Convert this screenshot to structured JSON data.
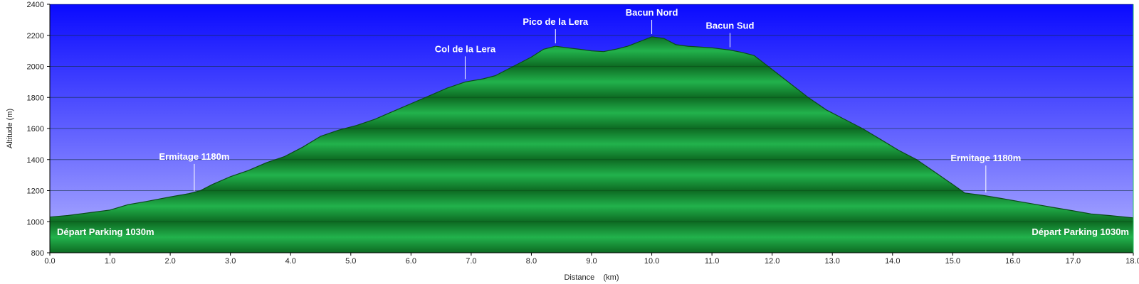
{
  "chart_data": {
    "type": "area",
    "title": "",
    "xlabel": "Distance    (km)",
    "ylabel": "Altitude (m)",
    "xlim": [
      0,
      18.0
    ],
    "ylim": [
      800,
      2400
    ],
    "x_ticks": [
      "0.0",
      "1.0",
      "2.0",
      "3.0",
      "4.0",
      "5.0",
      "6.0",
      "7.0",
      "8.0",
      "9.0",
      "10.0",
      "11.0",
      "12.0",
      "13.0",
      "14.0",
      "15.0",
      "16.0",
      "17.0",
      "18.0"
    ],
    "y_ticks": [
      "800",
      "1000",
      "1200",
      "1400",
      "1600",
      "1800",
      "2000",
      "2200",
      "2400"
    ],
    "grid": true,
    "colors": {
      "sky_top": "#0a0aff",
      "sky_bottom": "#b4b4ff",
      "area_light": "#22b24c",
      "area_dark": "#0d6a22",
      "outline": "#0b4a18"
    },
    "series": [
      {
        "x": [
          0,
          0.3,
          0.6,
          1.0,
          1.3,
          1.6,
          2.0,
          2.3,
          2.5,
          2.7,
          3.0,
          3.3,
          3.6,
          3.9,
          4.2,
          4.5,
          4.8,
          5.1,
          5.4,
          5.7,
          6.0,
          6.3,
          6.6,
          6.9,
          7.2,
          7.4,
          7.6,
          7.8,
          8.0,
          8.2,
          8.4,
          8.6,
          8.8,
          9.0,
          9.2,
          9.4,
          9.6,
          9.8,
          10.0,
          10.2,
          10.4,
          10.6,
          10.8,
          11.0,
          11.3,
          11.5,
          11.7,
          12.0,
          12.3,
          12.6,
          12.9,
          13.2,
          13.5,
          13.8,
          14.1,
          14.4,
          14.7,
          15.0,
          15.2,
          15.5,
          15.8,
          16.1,
          16.4,
          16.7,
          17.0,
          17.3,
          17.6,
          18.0
        ],
        "y": [
          1030,
          1040,
          1055,
          1075,
          1110,
          1130,
          1160,
          1180,
          1200,
          1240,
          1290,
          1330,
          1380,
          1420,
          1480,
          1550,
          1590,
          1620,
          1660,
          1710,
          1760,
          1810,
          1860,
          1900,
          1920,
          1940,
          1980,
          2020,
          2060,
          2110,
          2130,
          2120,
          2110,
          2100,
          2095,
          2110,
          2130,
          2160,
          2190,
          2180,
          2140,
          2130,
          2125,
          2120,
          2105,
          2090,
          2070,
          1980,
          1890,
          1800,
          1720,
          1660,
          1600,
          1530,
          1460,
          1400,
          1320,
          1240,
          1185,
          1170,
          1150,
          1130,
          1110,
          1090,
          1070,
          1050,
          1040,
          1025
        ]
      }
    ],
    "annotations": [
      {
        "label": "Ermitage 1180m",
        "x": 2.4,
        "y": 1180,
        "line_len": 38
      },
      {
        "label": "Col de la Lera",
        "x": 6.9,
        "y": 1900,
        "line_len": 32
      },
      {
        "label": "Pico de la Lera",
        "x": 8.4,
        "y": 2130,
        "line_len": 20
      },
      {
        "label": "Bacun Nord",
        "x": 10.0,
        "y": 2190,
        "line_len": 20
      },
      {
        "label": "Bacun Sud",
        "x": 11.3,
        "y": 2105,
        "line_len": 20
      },
      {
        "label": "Ermitage 1180m",
        "x": 15.55,
        "y": 1170,
        "line_len": 38
      }
    ],
    "corner_labels": {
      "left": "Départ Parking 1030m",
      "right": "Départ Parking 1030m"
    }
  }
}
